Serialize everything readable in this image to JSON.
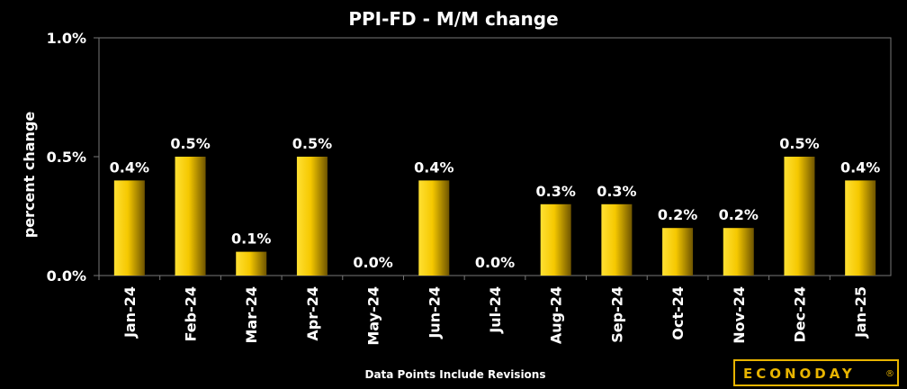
{
  "chart_data": {
    "type": "bar",
    "title": "PPI-FD - M/M change",
    "ylabel": "percent change",
    "xlabel": "",
    "categories": [
      "Jan-24",
      "Feb-24",
      "Mar-24",
      "Apr-24",
      "May-24",
      "Jun-24",
      "Jul-24",
      "Aug-24",
      "Sep-24",
      "Oct-24",
      "Nov-24",
      "Dec-24",
      "Jan-25"
    ],
    "values": [
      0.4,
      0.5,
      0.1,
      0.5,
      0.0,
      0.4,
      0.0,
      0.3,
      0.3,
      0.2,
      0.2,
      0.5,
      0.4
    ],
    "data_labels": [
      "0.4%",
      "0.5%",
      "0.1%",
      "0.5%",
      "0.0%",
      "0.4%",
      "0.0%",
      "0.3%",
      "0.3%",
      "0.2%",
      "0.2%",
      "0.5%",
      "0.4%"
    ],
    "ylim": [
      0.0,
      1.0
    ],
    "yticks": [
      0.0,
      0.5,
      1.0
    ],
    "ytick_labels": [
      "0.0%",
      "0.5%",
      "1.0%"
    ],
    "grid": false,
    "legend": "none",
    "bar_color": "#f5c800",
    "background": "#000000"
  },
  "footnote": "Data Points Include Revisions",
  "logo": {
    "text": "ECONODAY",
    "mark": "®",
    "color": "#e8b400"
  }
}
